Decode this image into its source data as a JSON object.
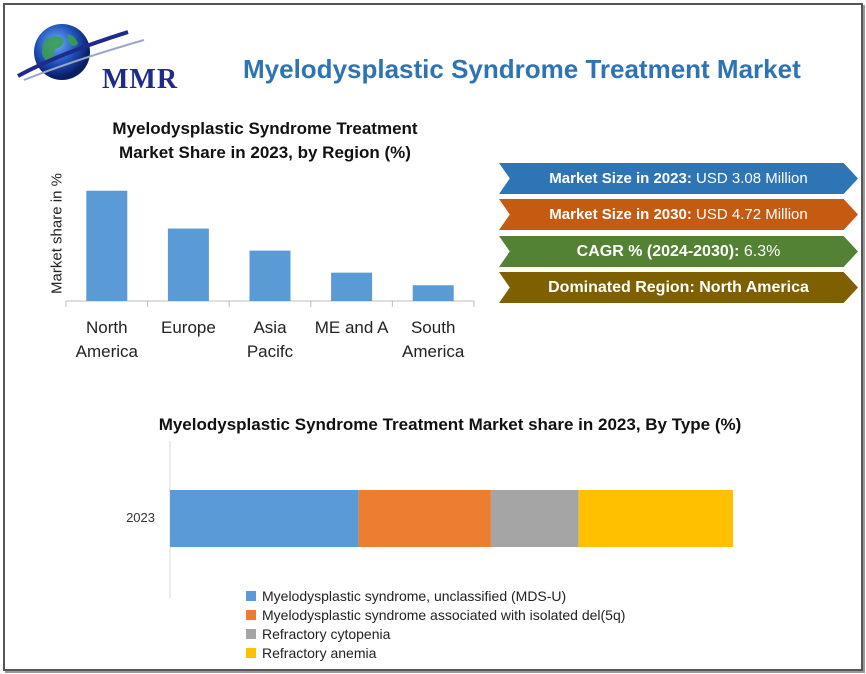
{
  "header": {
    "logo_text": "MMR",
    "title": "Myelodysplastic Syndrome Treatment Market"
  },
  "stats": {
    "market_2023_label": "Market Size in 2023:",
    "market_2023_value": "USD 3.08 Million",
    "market_2030_label": "Market Size in 2030:",
    "market_2030_value": "USD 4.72 Million",
    "cagr_label": "CAGR % (2024-2030):",
    "cagr_value": "6.3%",
    "region_label": "Dominated Region:",
    "region_value": "North America"
  },
  "colors": {
    "bar_blue": "#5b9bd5",
    "orange": "#ed7d31",
    "gray": "#a5a5a5",
    "yellow": "#ffc000"
  },
  "chart_data": [
    {
      "type": "bar",
      "title_line1": "Myelodysplastic Syndrome Treatment",
      "title_line2": "Market Share in 2023, by Region (%)",
      "xlabel": "",
      "ylabel": "Market share in %",
      "categories": [
        [
          "North",
          "America"
        ],
        [
          "Europe"
        ],
        [
          "Asia",
          "Pacifc"
        ],
        [
          "ME and A"
        ],
        [
          "South",
          "America"
        ]
      ],
      "values": [
        35,
        23,
        16,
        9,
        5
      ],
      "ylim": [
        0,
        40
      ],
      "grid": false
    },
    {
      "type": "bar",
      "orientation": "horizontal-stacked",
      "title": "Myelodysplastic Syndrome Treatment Market share in 2023, By Type (%)",
      "categories": [
        "2023"
      ],
      "series": [
        {
          "name": "Myelodysplastic syndrome, unclassified (MDS-U)",
          "values": [
            33.5
          ],
          "color": "#5b9bd5"
        },
        {
          "name": "Myelodysplastic syndrome associated with isolated del(5q)",
          "values": [
            23.5
          ],
          "color": "#ed7d31"
        },
        {
          "name": "Refractory cytopenia",
          "values": [
            15.6
          ],
          "color": "#a5a5a5"
        },
        {
          "name": "Refractory anemia",
          "values": [
            27.4
          ],
          "color": "#ffc000"
        }
      ],
      "xlim": [
        0,
        100
      ],
      "legend": "bottom"
    }
  ]
}
